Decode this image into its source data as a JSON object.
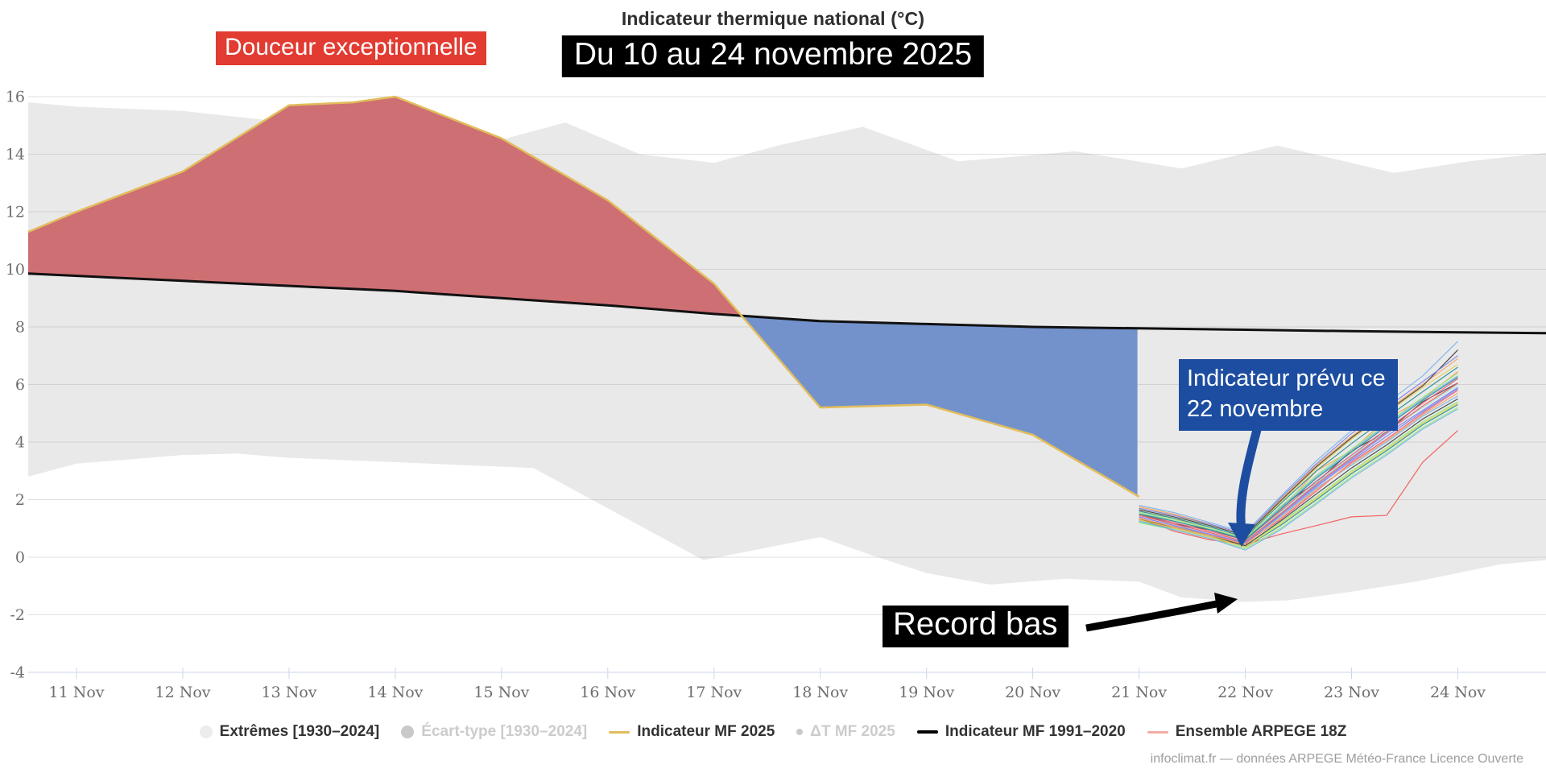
{
  "header": {
    "title": "Indicateur thermique national (°C)",
    "subtitle": "Du 10 au 24 novembre 2025"
  },
  "annotations": {
    "douceur": "Douceur exceptionnelle",
    "prevu": "Indicateur prévu ce 22 novembre",
    "record": "Record bas"
  },
  "footer": {
    "credit": "infoclimat.fr — données ARPEGE Météo-France Licence Ouverte"
  },
  "legend": {
    "items": [
      {
        "label": "Extrêmes [1930–2024]",
        "symbol": "circle",
        "color": "#ececec",
        "active": true
      },
      {
        "label": "Écart-type [1930–2024]",
        "symbol": "circle",
        "color": "#c9c9c9",
        "active": false
      },
      {
        "label": "Indicateur MF 2025",
        "symbol": "line",
        "color": "#e2bd5c",
        "active": true
      },
      {
        "label": "ΔT MF 2025",
        "symbol": "dot",
        "color": "#c9c9c9",
        "active": false
      },
      {
        "label": "Indicateur MF 1991–2020",
        "symbol": "line",
        "color": "#000000",
        "active": true
      },
      {
        "label": "Ensemble ARPEGE 18Z",
        "symbol": "line",
        "color": "#f2aba4",
        "active": true
      }
    ]
  },
  "chart_data": {
    "type": "line",
    "title": "Indicateur thermique national (°C)",
    "subtitle": "Du 10 au 24 novembre 2025",
    "unit": "°C",
    "x_axis": {
      "range": [
        10.545,
        24.83
      ],
      "days": [
        11,
        12,
        13,
        14,
        15,
        16,
        17,
        18,
        19,
        20,
        21,
        22,
        23,
        24
      ],
      "labels": [
        "11 Nov",
        "12 Nov",
        "13 Nov",
        "14 Nov",
        "15 Nov",
        "16 Nov",
        "17 Nov",
        "18 Nov",
        "19 Nov",
        "20 Nov",
        "21 Nov",
        "22 Nov",
        "23 Nov",
        "24 Nov"
      ]
    },
    "y_axis": {
      "range": [
        -4,
        16.67
      ],
      "ticks": [
        16,
        14,
        12,
        10,
        8,
        6,
        4,
        2,
        0,
        -2,
        -4
      ],
      "grid": true
    },
    "series": {
      "extremes_band": {
        "name": "Extrêmes [1930–2024]",
        "color": "#e9e9e9",
        "upper": [
          [
            10.545,
            15.8
          ],
          [
            11,
            15.65
          ],
          [
            12,
            15.5
          ],
          [
            13,
            15.1
          ],
          [
            14,
            14.5
          ],
          [
            14.7,
            14.2
          ],
          [
            15.6,
            15.1
          ],
          [
            16.3,
            14.0
          ],
          [
            17,
            13.7
          ],
          [
            17.6,
            14.3
          ],
          [
            18.4,
            14.95
          ],
          [
            19.3,
            13.75
          ],
          [
            20.4,
            14.1
          ],
          [
            21.4,
            13.5
          ],
          [
            22.3,
            14.3
          ],
          [
            23.4,
            13.35
          ],
          [
            24.1,
            13.75
          ],
          [
            24.83,
            14.05
          ]
        ],
        "lower": [
          [
            10.545,
            2.8
          ],
          [
            11,
            3.25
          ],
          [
            12,
            3.55
          ],
          [
            12.5,
            3.6
          ],
          [
            13,
            3.45
          ],
          [
            14,
            3.3
          ],
          [
            15.3,
            3.1
          ],
          [
            16,
            1.7
          ],
          [
            16.9,
            -0.1
          ],
          [
            18,
            0.7
          ],
          [
            18.5,
            0.05
          ],
          [
            19,
            -0.55
          ],
          [
            19.6,
            -0.95
          ],
          [
            20.3,
            -0.75
          ],
          [
            21,
            -0.85
          ],
          [
            21.4,
            -1.4
          ],
          [
            22,
            -1.55
          ],
          [
            22.4,
            -1.5
          ],
          [
            23,
            -1.2
          ],
          [
            23.6,
            -0.85
          ],
          [
            24.4,
            -0.25
          ],
          [
            24.83,
            -0.1
          ]
        ]
      },
      "indicateur_mf_2025": {
        "name": "Indicateur MF 2025",
        "color": "#e2bd5c",
        "fill_above_normal": "#ce6f73",
        "fill_below_normal": "#7392cc",
        "points": [
          [
            10.545,
            11.3
          ],
          [
            11,
            12.0
          ],
          [
            12,
            13.4
          ],
          [
            13,
            15.7
          ],
          [
            13.6,
            15.8
          ],
          [
            14,
            16.0
          ],
          [
            15,
            14.55
          ],
          [
            16,
            12.4
          ],
          [
            17,
            9.5
          ],
          [
            18,
            5.2
          ],
          [
            19,
            5.3
          ],
          [
            20,
            4.25
          ],
          [
            21,
            2.1
          ]
        ]
      },
      "indicateur_mf_1991_2020": {
        "name": "Indicateur MF 1991–2020",
        "color": "#111111",
        "points": [
          [
            10.545,
            9.85
          ],
          [
            12,
            9.6
          ],
          [
            14,
            9.25
          ],
          [
            16,
            8.75
          ],
          [
            17,
            8.45
          ],
          [
            18,
            8.2
          ],
          [
            19,
            8.1
          ],
          [
            20,
            8.0
          ],
          [
            21,
            7.95
          ],
          [
            22,
            7.9
          ],
          [
            23,
            7.85
          ],
          [
            24.83,
            7.78
          ]
        ]
      },
      "ensemble_arpege_18z": {
        "name": "Ensemble ARPEGE 18Z",
        "days": [
          21,
          21.33,
          21.67,
          22,
          22.33,
          22.67,
          23,
          23.33,
          23.67,
          24
        ],
        "members": [
          {
            "color": "#7cb5ec",
            "values": [
              1.3,
              1.05,
              0.8,
              0.5,
              1.4,
              2.4,
              3.2,
              4.0,
              4.9,
              5.6
            ]
          },
          {
            "color": "#434348",
            "values": [
              1.5,
              1.15,
              0.95,
              0.6,
              1.75,
              2.6,
              3.7,
              4.35,
              5.4,
              6.05
            ]
          },
          {
            "color": "#90ed7d",
            "values": [
              1.2,
              1.0,
              0.7,
              0.4,
              1.2,
              2.1,
              3.0,
              3.8,
              4.7,
              5.4
            ]
          },
          {
            "color": "#f7a35c",
            "values": [
              1.6,
              1.35,
              0.95,
              0.7,
              1.65,
              3.0,
              3.7,
              4.8,
              5.5,
              6.45
            ]
          },
          {
            "color": "#8085e9",
            "values": [
              1.4,
              1.1,
              0.8,
              0.45,
              1.5,
              2.5,
              3.4,
              4.3,
              5.1,
              5.9
            ]
          },
          {
            "color": "#f15c80",
            "values": [
              1.35,
              1.05,
              0.75,
              0.5,
              1.3,
              2.3,
              3.3,
              4.1,
              5.0,
              5.8
            ]
          },
          {
            "color": "#e4d354",
            "values": [
              1.7,
              1.45,
              1.1,
              0.75,
              1.9,
              3.1,
              4.1,
              5.0,
              5.9,
              6.7
            ]
          },
          {
            "color": "#2b908f",
            "values": [
              1.25,
              1.0,
              0.7,
              0.35,
              1.1,
              2.0,
              2.9,
              3.7,
              4.6,
              5.3
            ]
          },
          {
            "color": "#f45b5b",
            "values": [
              1.35,
              0.9,
              0.6,
              0.45,
              0.8,
              1.1,
              1.4,
              1.45,
              3.3,
              4.4
            ]
          },
          {
            "color": "#91e8e1",
            "values": [
              1.45,
              1.15,
              0.85,
              0.55,
              1.55,
              2.6,
              3.5,
              4.4,
              5.2,
              6.0
            ]
          },
          {
            "color": "#7cb5ec",
            "values": [
              1.55,
              1.25,
              0.95,
              0.65,
              1.7,
              2.8,
              3.7,
              4.6,
              5.5,
              6.3
            ]
          },
          {
            "color": "#434348",
            "values": [
              1.3,
              1.05,
              0.75,
              0.4,
              1.25,
              2.2,
              3.1,
              3.9,
              4.8,
              5.5
            ]
          },
          {
            "color": "#90ed7d",
            "values": [
              1.2,
              0.95,
              0.65,
              0.3,
              1.0,
              1.9,
              2.8,
              3.6,
              4.5,
              5.2
            ]
          },
          {
            "color": "#f7a35c",
            "values": [
              1.75,
              1.5,
              1.15,
              0.8,
              2.0,
              3.2,
              4.2,
              5.1,
              6.0,
              6.9
            ]
          },
          {
            "color": "#8085e9",
            "values": [
              1.4,
              1.1,
              0.8,
              0.5,
              1.45,
              2.45,
              3.35,
              4.2,
              5.05,
              5.85
            ]
          },
          {
            "color": "#f15c80",
            "values": [
              1.5,
              1.2,
              0.9,
              0.6,
              1.6,
              2.65,
              3.55,
              4.45,
              5.35,
              6.2
            ]
          },
          {
            "color": "#e4d354",
            "values": [
              1.3,
              1.0,
              0.7,
              0.35,
              1.15,
              2.05,
              2.95,
              3.75,
              4.65,
              5.35
            ]
          },
          {
            "color": "#2b908f",
            "values": [
              1.6,
              1.35,
              1.05,
              0.7,
              1.85,
              3.0,
              3.95,
              4.85,
              5.75,
              6.6
            ]
          },
          {
            "color": "#f45b5b",
            "values": [
              1.45,
              1.15,
              0.85,
              0.55,
              1.5,
              2.55,
              3.45,
              4.35,
              5.25,
              6.05
            ]
          },
          {
            "color": "#7cb5ec",
            "values": [
              1.25,
              0.95,
              0.65,
              0.25,
              0.95,
              1.85,
              2.75,
              3.55,
              4.45,
              5.15
            ]
          },
          {
            "color": "#434348",
            "values": [
              1.65,
              1.4,
              1.1,
              0.75,
              1.95,
              3.15,
              4.15,
              5.05,
              5.95,
              7.2
            ]
          },
          {
            "color": "#90ed7d",
            "values": [
              1.55,
              1.3,
              1.0,
              0.65,
              1.75,
              2.85,
              3.75,
              4.65,
              5.55,
              6.4
            ]
          },
          {
            "color": "#f7a35c",
            "values": [
              1.35,
              1.05,
              0.75,
              0.45,
              1.35,
              2.35,
              3.25,
              4.05,
              4.95,
              5.7
            ]
          },
          {
            "color": "#8085e9",
            "values": [
              1.7,
              1.45,
              1.15,
              0.8,
              2.05,
              3.25,
              4.3,
              5.2,
              6.1,
              7.0
            ]
          },
          {
            "color": "#2b908f",
            "values": [
              1.5,
              1.25,
              0.95,
              0.6,
              1.65,
              2.75,
              3.65,
              4.55,
              5.45,
              6.25
            ]
          },
          {
            "color": "#7cb5ec",
            "values": [
              1.8,
              1.55,
              1.2,
              0.85,
              2.1,
              3.35,
              4.4,
              5.35,
              6.3,
              7.5
            ]
          }
        ]
      }
    },
    "annotation_targets": {
      "prevu_min_day": 22,
      "prevu_min_value": 0.3,
      "record_low_day": 21.9,
      "record_low_value": -1.5
    }
  }
}
